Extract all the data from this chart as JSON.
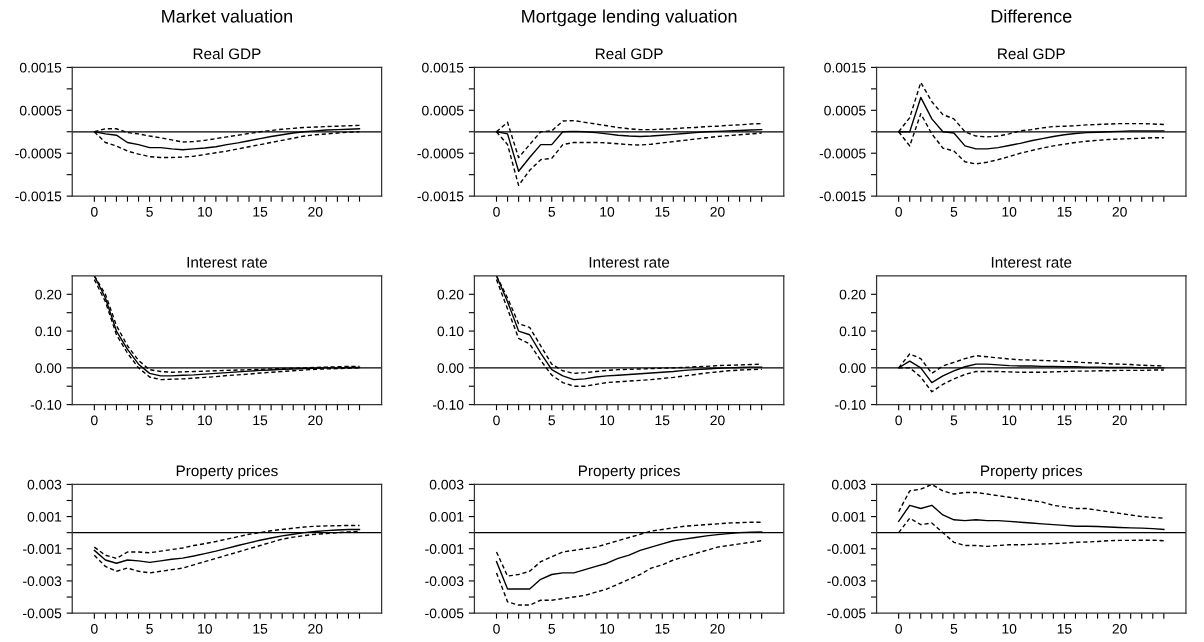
{
  "chart_data": [
    {
      "type": "line",
      "title": "Real GDP",
      "annotations": [
        "Market valuation"
      ],
      "x": [
        0,
        1,
        2,
        3,
        4,
        5,
        6,
        7,
        8,
        9,
        10,
        11,
        12,
        13,
        14,
        15,
        16,
        17,
        18,
        19,
        20,
        21,
        22,
        23,
        24
      ],
      "xlim": [
        -2,
        26
      ],
      "ylim": [
        -0.0015,
        0.0015
      ],
      "xticks": [
        0,
        {
          "value": 1,
          "label": null
        },
        {
          "value": 2,
          "label": null
        },
        {
          "value": 3,
          "label": null
        },
        {
          "value": 4,
          "label": null
        },
        5,
        {
          "value": 6,
          "label": null
        },
        {
          "value": 7,
          "label": null
        },
        {
          "value": 8,
          "label": null
        },
        {
          "value": 9,
          "label": null
        },
        10,
        {
          "value": 11,
          "label": null
        },
        {
          "value": 12,
          "label": null
        },
        {
          "value": 13,
          "label": null
        },
        {
          "value": 14,
          "label": null
        },
        15,
        {
          "value": 16,
          "label": null
        },
        {
          "value": 17,
          "label": null
        },
        {
          "value": 18,
          "label": null
        },
        {
          "value": 19,
          "label": null
        },
        20,
        {
          "value": 21,
          "label": null
        },
        {
          "value": 22,
          "label": null
        },
        {
          "value": 23,
          "label": null
        },
        {
          "value": 24,
          "label": null
        }
      ],
      "yticks": [
        -0.0015,
        {
          "value": -0.001,
          "label": null
        },
        -0.0005,
        {
          "value": 0,
          "label": null
        },
        0.0005,
        {
          "value": 0.001,
          "label": null
        },
        0.0015
      ],
      "ref_lines": [
        {
          "axis": "y",
          "value": 0,
          "color": "#000000"
        }
      ],
      "series": [
        {
          "color": "#000000",
          "line_style": "solid",
          "values": [
            0,
            -5e-05,
            -8e-05,
            -0.00025,
            -0.0003,
            -0.00037,
            -0.00037,
            -0.0004,
            -0.00042,
            -0.0004,
            -0.00038,
            -0.00035,
            -0.0003,
            -0.00026,
            -0.00021,
            -0.00016,
            -0.00011,
            -7e-05,
            -3e-05,
            0,
            2e-05,
            4e-05,
            5e-05,
            6e-05,
            7e-05
          ]
        },
        {
          "color": "#000000",
          "line_style": "dashed",
          "values": [
            0,
            7e-05,
            7e-05,
            -2e-05,
            -5e-05,
            -0.0001,
            -0.00014,
            -0.00019,
            -0.00024,
            -0.00023,
            -0.0002,
            -0.00016,
            -0.00012,
            -8e-05,
            -4e-05,
            0,
            3e-05,
            6e-05,
            8e-05,
            0.0001,
            0.00011,
            0.00012,
            0.00013,
            0.00014,
            0.00015
          ]
        },
        {
          "color": "#000000",
          "line_style": "dashed",
          "values": [
            0,
            -0.00025,
            -0.00033,
            -0.00045,
            -0.00052,
            -0.00058,
            -0.0006,
            -0.0006,
            -0.00059,
            -0.00057,
            -0.00053,
            -0.00049,
            -0.00045,
            -0.0004,
            -0.00035,
            -0.0003,
            -0.00025,
            -0.0002,
            -0.00015,
            -0.0001,
            -7e-05,
            -5e-05,
            -3e-05,
            -1e-05,
            0
          ]
        }
      ]
    },
    {
      "type": "line",
      "title": "Real GDP",
      "annotations": [
        "Mortgage lending valuation"
      ],
      "x": [
        0,
        1,
        2,
        3,
        4,
        5,
        6,
        7,
        8,
        9,
        10,
        11,
        12,
        13,
        14,
        15,
        16,
        17,
        18,
        19,
        20,
        21,
        22,
        23,
        24
      ],
      "xlim": [
        -2,
        26
      ],
      "ylim": [
        -0.0015,
        0.0015
      ],
      "xticks": [
        0,
        {
          "value": 1,
          "label": null
        },
        {
          "value": 2,
          "label": null
        },
        {
          "value": 3,
          "label": null
        },
        {
          "value": 4,
          "label": null
        },
        5,
        {
          "value": 6,
          "label": null
        },
        {
          "value": 7,
          "label": null
        },
        {
          "value": 8,
          "label": null
        },
        {
          "value": 9,
          "label": null
        },
        10,
        {
          "value": 11,
          "label": null
        },
        {
          "value": 12,
          "label": null
        },
        {
          "value": 13,
          "label": null
        },
        {
          "value": 14,
          "label": null
        },
        15,
        {
          "value": 16,
          "label": null
        },
        {
          "value": 17,
          "label": null
        },
        {
          "value": 18,
          "label": null
        },
        {
          "value": 19,
          "label": null
        },
        20,
        {
          "value": 21,
          "label": null
        },
        {
          "value": 22,
          "label": null
        },
        {
          "value": 23,
          "label": null
        },
        {
          "value": 24,
          "label": null
        }
      ],
      "yticks": [
        -0.0015,
        {
          "value": -0.001,
          "label": null
        },
        -0.0005,
        {
          "value": 0,
          "label": null
        },
        0.0005,
        {
          "value": 0.001,
          "label": null
        },
        0.0015
      ],
      "ref_lines": [
        {
          "axis": "y",
          "value": 0,
          "color": "#000000"
        }
      ],
      "series": [
        {
          "color": "#000000",
          "line_style": "solid",
          "values": [
            0,
            -5e-05,
            -0.00092,
            -0.0006,
            -0.0003,
            -0.0003,
            0,
            1e-05,
            0,
            -2e-05,
            -5e-05,
            -8e-05,
            -0.0001,
            -0.00011,
            -0.0001,
            -8e-05,
            -6e-05,
            -4e-05,
            -2e-05,
            0,
            1e-05,
            2e-05,
            3e-05,
            4e-05,
            5e-05
          ]
        },
        {
          "color": "#000000",
          "line_style": "dashed",
          "values": [
            0,
            0.00022,
            -0.0006,
            -0.0003,
            0,
            2e-05,
            0.00025,
            0.00026,
            0.00022,
            0.00018,
            0.00014,
            0.0001,
            7e-05,
            5e-05,
            5e-05,
            6e-05,
            7e-05,
            9e-05,
            0.0001,
            0.00012,
            0.00013,
            0.00015,
            0.00016,
            0.00018,
            0.00019
          ]
        },
        {
          "color": "#000000",
          "line_style": "dashed",
          "values": [
            0,
            -0.0003,
            -0.00125,
            -0.0009,
            -0.00065,
            -0.00062,
            -0.0003,
            -0.00025,
            -0.00025,
            -0.00025,
            -0.00026,
            -0.00028,
            -0.0003,
            -0.00031,
            -0.00029,
            -0.00026,
            -0.00023,
            -0.0002,
            -0.00017,
            -0.00014,
            -0.00011,
            -9e-05,
            -7e-05,
            -5e-05,
            -3e-05
          ]
        }
      ]
    },
    {
      "type": "line",
      "title": "Real GDP",
      "annotations": [
        "Difference"
      ],
      "x": [
        0,
        1,
        2,
        3,
        4,
        5,
        6,
        7,
        8,
        9,
        10,
        11,
        12,
        13,
        14,
        15,
        16,
        17,
        18,
        19,
        20,
        21,
        22,
        23,
        24
      ],
      "xlim": [
        -2,
        26
      ],
      "ylim": [
        -0.0015,
        0.0015
      ],
      "xticks": [
        0,
        {
          "value": 1,
          "label": null
        },
        {
          "value": 2,
          "label": null
        },
        {
          "value": 3,
          "label": null
        },
        {
          "value": 4,
          "label": null
        },
        5,
        {
          "value": 6,
          "label": null
        },
        {
          "value": 7,
          "label": null
        },
        {
          "value": 8,
          "label": null
        },
        {
          "value": 9,
          "label": null
        },
        10,
        {
          "value": 11,
          "label": null
        },
        {
          "value": 12,
          "label": null
        },
        {
          "value": 13,
          "label": null
        },
        {
          "value": 14,
          "label": null
        },
        15,
        {
          "value": 16,
          "label": null
        },
        {
          "value": 17,
          "label": null
        },
        {
          "value": 18,
          "label": null
        },
        {
          "value": 19,
          "label": null
        },
        20,
        {
          "value": 21,
          "label": null
        },
        {
          "value": 22,
          "label": null
        },
        {
          "value": 23,
          "label": null
        },
        {
          "value": 24,
          "label": null
        }
      ],
      "yticks": [
        -0.0015,
        {
          "value": -0.001,
          "label": null
        },
        -0.0005,
        {
          "value": 0,
          "label": null
        },
        0.0005,
        {
          "value": 0.001,
          "label": null
        },
        0.0015
      ],
      "ref_lines": [
        {
          "axis": "y",
          "value": 0,
          "color": "#000000"
        }
      ],
      "series": [
        {
          "color": "#000000",
          "line_style": "solid",
          "values": [
            0,
            0,
            0.0008,
            0.0003,
            0,
            -3e-05,
            -0.00033,
            -0.0004,
            -0.0004,
            -0.00037,
            -0.00032,
            -0.00027,
            -0.00021,
            -0.00016,
            -0.00011,
            -7e-05,
            -4e-05,
            -2e-05,
            -1e-05,
            0,
            1e-05,
            2e-05,
            2e-05,
            2e-05,
            2e-05
          ]
        },
        {
          "color": "#000000",
          "line_style": "dashed",
          "values": [
            0,
            0.00033,
            0.00115,
            0.0007,
            0.0004,
            0.0003,
            0,
            -0.0001,
            -0.00012,
            -0.0001,
            -5e-05,
            2e-05,
            5e-05,
            9e-05,
            0.00012,
            0.00013,
            0.00014,
            0.00016,
            0.00017,
            0.00018,
            0.00019,
            0.00019,
            0.00019,
            0.00018,
            0.00017
          ]
        },
        {
          "color": "#000000",
          "line_style": "dashed",
          "values": [
            0,
            -0.00033,
            0.00042,
            -5e-05,
            -0.00038,
            -0.00045,
            -0.0007,
            -0.00075,
            -0.00071,
            -0.00065,
            -0.00058,
            -0.0005,
            -0.00044,
            -0.00038,
            -0.00033,
            -0.00029,
            -0.00025,
            -0.00022,
            -0.0002,
            -0.00018,
            -0.00017,
            -0.00016,
            -0.00015,
            -0.00014,
            -0.00014
          ]
        }
      ]
    },
    {
      "type": "line",
      "title": "Interest rate",
      "x": [
        0,
        1,
        2,
        3,
        4,
        5,
        6,
        7,
        8,
        9,
        10,
        11,
        12,
        13,
        14,
        15,
        16,
        17,
        18,
        19,
        20,
        21,
        22,
        23,
        24
      ],
      "xlim": [
        -2,
        26
      ],
      "ylim": [
        -0.1,
        0.25
      ],
      "xticks": [
        0,
        {
          "value": 1,
          "label": null
        },
        {
          "value": 2,
          "label": null
        },
        {
          "value": 3,
          "label": null
        },
        {
          "value": 4,
          "label": null
        },
        5,
        {
          "value": 6,
          "label": null
        },
        {
          "value": 7,
          "label": null
        },
        {
          "value": 8,
          "label": null
        },
        {
          "value": 9,
          "label": null
        },
        10,
        {
          "value": 11,
          "label": null
        },
        {
          "value": 12,
          "label": null
        },
        {
          "value": 13,
          "label": null
        },
        {
          "value": 14,
          "label": null
        },
        15,
        {
          "value": 16,
          "label": null
        },
        {
          "value": 17,
          "label": null
        },
        {
          "value": 18,
          "label": null
        },
        {
          "value": 19,
          "label": null
        },
        20,
        {
          "value": 21,
          "label": null
        },
        {
          "value": 22,
          "label": null
        },
        {
          "value": 23,
          "label": null
        },
        {
          "value": 24,
          "label": null
        }
      ],
      "yticks": [
        {
          "value": -0.1,
          "label": "-0.10"
        },
        {
          "value": -0.05,
          "label": null
        },
        {
          "value": 0,
          "label": "0.00"
        },
        {
          "value": 0.05,
          "label": null
        },
        {
          "value": 0.1,
          "label": "0.10"
        },
        {
          "value": 0.15,
          "label": null
        },
        {
          "value": 0.2,
          "label": "0.20"
        }
      ],
      "ref_lines": [
        {
          "axis": "y",
          "value": 0,
          "color": "#000000"
        }
      ],
      "series": [
        {
          "color": "#000000",
          "line_style": "solid",
          "values": [
            0.25,
            0.19,
            0.1,
            0.05,
            0.01,
            -0.015,
            -0.022,
            -0.022,
            -0.02,
            -0.019,
            -0.017,
            -0.015,
            -0.013,
            -0.011,
            -0.009,
            -0.007,
            -0.006,
            -0.004,
            -0.003,
            -0.002,
            -0.001,
            0,
            0,
            0.001,
            0.001
          ]
        },
        {
          "color": "#000000",
          "line_style": "dashed",
          "values": [
            0.25,
            0.2,
            0.115,
            0.06,
            0.02,
            -0.005,
            -0.01,
            -0.012,
            -0.011,
            -0.01,
            -0.009,
            -0.008,
            -0.007,
            -0.006,
            -0.005,
            -0.004,
            -0.003,
            -0.002,
            -0.001,
            0,
            0.001,
            0.002,
            0.003,
            0.004,
            0.004
          ]
        },
        {
          "color": "#000000",
          "line_style": "dashed",
          "values": [
            0.24,
            0.18,
            0.09,
            0.04,
            0,
            -0.025,
            -0.032,
            -0.031,
            -0.03,
            -0.028,
            -0.026,
            -0.024,
            -0.021,
            -0.019,
            -0.017,
            -0.014,
            -0.012,
            -0.01,
            -0.008,
            -0.006,
            -0.004,
            -0.003,
            -0.002,
            -0.001,
            0
          ]
        }
      ]
    },
    {
      "type": "line",
      "title": "Interest rate",
      "x": [
        0,
        1,
        2,
        3,
        4,
        5,
        6,
        7,
        8,
        9,
        10,
        11,
        12,
        13,
        14,
        15,
        16,
        17,
        18,
        19,
        20,
        21,
        22,
        23,
        24
      ],
      "xlim": [
        -2,
        26
      ],
      "ylim": [
        -0.1,
        0.25
      ],
      "xticks": [
        0,
        {
          "value": 1,
          "label": null
        },
        {
          "value": 2,
          "label": null
        },
        {
          "value": 3,
          "label": null
        },
        {
          "value": 4,
          "label": null
        },
        5,
        {
          "value": 6,
          "label": null
        },
        {
          "value": 7,
          "label": null
        },
        {
          "value": 8,
          "label": null
        },
        {
          "value": 9,
          "label": null
        },
        10,
        {
          "value": 11,
          "label": null
        },
        {
          "value": 12,
          "label": null
        },
        {
          "value": 13,
          "label": null
        },
        {
          "value": 14,
          "label": null
        },
        15,
        {
          "value": 16,
          "label": null
        },
        {
          "value": 17,
          "label": null
        },
        {
          "value": 18,
          "label": null
        },
        {
          "value": 19,
          "label": null
        },
        20,
        {
          "value": 21,
          "label": null
        },
        {
          "value": 22,
          "label": null
        },
        {
          "value": 23,
          "label": null
        },
        {
          "value": 24,
          "label": null
        }
      ],
      "yticks": [
        {
          "value": -0.1,
          "label": "-0.10"
        },
        {
          "value": -0.05,
          "label": null
        },
        {
          "value": 0,
          "label": "0.00"
        },
        {
          "value": 0.05,
          "label": null
        },
        {
          "value": 0.1,
          "label": "0.10"
        },
        {
          "value": 0.15,
          "label": null
        },
        {
          "value": 0.2,
          "label": "0.20"
        }
      ],
      "ref_lines": [
        {
          "axis": "y",
          "value": 0,
          "color": "#000000"
        }
      ],
      "series": [
        {
          "color": "#000000",
          "line_style": "solid",
          "values": [
            0.25,
            0.18,
            0.1,
            0.09,
            0.04,
            -0.005,
            -0.022,
            -0.032,
            -0.03,
            -0.025,
            -0.022,
            -0.02,
            -0.018,
            -0.016,
            -0.014,
            -0.012,
            -0.01,
            -0.007,
            -0.005,
            -0.003,
            -0.001,
            0,
            0.001,
            0.002,
            0.002
          ]
        },
        {
          "color": "#000000",
          "line_style": "dashed",
          "values": [
            0.25,
            0.19,
            0.12,
            0.11,
            0.06,
            0.01,
            -0.008,
            -0.015,
            -0.013,
            -0.01,
            -0.007,
            -0.005,
            -0.004,
            -0.003,
            -0.002,
            -0.001,
            0,
            0.001,
            0.003,
            0.004,
            0.006,
            0.007,
            0.008,
            0.009,
            0.01
          ]
        },
        {
          "color": "#000000",
          "line_style": "dashed",
          "values": [
            0.24,
            0.16,
            0.08,
            0.065,
            0.02,
            -0.02,
            -0.04,
            -0.05,
            -0.05,
            -0.045,
            -0.04,
            -0.038,
            -0.036,
            -0.034,
            -0.032,
            -0.029,
            -0.026,
            -0.022,
            -0.018,
            -0.014,
            -0.011,
            -0.008,
            -0.006,
            -0.005,
            -0.004
          ]
        }
      ]
    },
    {
      "type": "line",
      "title": "Interest rate",
      "x": [
        0,
        1,
        2,
        3,
        4,
        5,
        6,
        7,
        8,
        9,
        10,
        11,
        12,
        13,
        14,
        15,
        16,
        17,
        18,
        19,
        20,
        21,
        22,
        23,
        24
      ],
      "xlim": [
        -2,
        26
      ],
      "ylim": [
        -0.1,
        0.25
      ],
      "xticks": [
        0,
        {
          "value": 1,
          "label": null
        },
        {
          "value": 2,
          "label": null
        },
        {
          "value": 3,
          "label": null
        },
        {
          "value": 4,
          "label": null
        },
        5,
        {
          "value": 6,
          "label": null
        },
        {
          "value": 7,
          "label": null
        },
        {
          "value": 8,
          "label": null
        },
        {
          "value": 9,
          "label": null
        },
        10,
        {
          "value": 11,
          "label": null
        },
        {
          "value": 12,
          "label": null
        },
        {
          "value": 13,
          "label": null
        },
        {
          "value": 14,
          "label": null
        },
        15,
        {
          "value": 16,
          "label": null
        },
        {
          "value": 17,
          "label": null
        },
        {
          "value": 18,
          "label": null
        },
        {
          "value": 19,
          "label": null
        },
        20,
        {
          "value": 21,
          "label": null
        },
        {
          "value": 22,
          "label": null
        },
        {
          "value": 23,
          "label": null
        },
        {
          "value": 24,
          "label": null
        }
      ],
      "yticks": [
        {
          "value": -0.1,
          "label": "-0.10"
        },
        {
          "value": -0.05,
          "label": null
        },
        {
          "value": 0,
          "label": "0.00"
        },
        {
          "value": 0.05,
          "label": null
        },
        {
          "value": 0.1,
          "label": "0.10"
        },
        {
          "value": 0.15,
          "label": null
        },
        {
          "value": 0.2,
          "label": "0.20"
        }
      ],
      "ref_lines": [
        {
          "axis": "y",
          "value": 0,
          "color": "#000000"
        }
      ],
      "series": [
        {
          "color": "#000000",
          "line_style": "solid",
          "values": [
            0,
            0.018,
            0,
            -0.04,
            -0.022,
            -0.008,
            0.003,
            0.01,
            0.01,
            0.008,
            0.006,
            0.005,
            0.005,
            0.004,
            0.004,
            0.003,
            0.003,
            0.002,
            0.002,
            0.001,
            0.001,
            0.001,
            0,
            0,
            0
          ]
        },
        {
          "color": "#000000",
          "line_style": "dashed",
          "values": [
            0,
            0.038,
            0.025,
            -0.015,
            0.005,
            0.015,
            0.025,
            0.033,
            0.03,
            0.027,
            0.024,
            0.022,
            0.021,
            0.02,
            0.019,
            0.018,
            0.016,
            0.014,
            0.013,
            0.011,
            0.01,
            0.009,
            0.007,
            0.006,
            0.005
          ]
        },
        {
          "color": "#000000",
          "line_style": "dashed",
          "values": [
            0,
            0,
            -0.025,
            -0.065,
            -0.045,
            -0.03,
            -0.018,
            -0.01,
            -0.01,
            -0.01,
            -0.011,
            -0.012,
            -0.012,
            -0.012,
            -0.011,
            -0.01,
            -0.009,
            -0.009,
            -0.008,
            -0.008,
            -0.007,
            -0.007,
            -0.007,
            -0.006,
            -0.006
          ]
        }
      ]
    },
    {
      "type": "line",
      "title": "Property prices",
      "x": [
        0,
        1,
        2,
        3,
        4,
        5,
        6,
        7,
        8,
        9,
        10,
        11,
        12,
        13,
        14,
        15,
        16,
        17,
        18,
        19,
        20,
        21,
        22,
        23,
        24
      ],
      "xlim": [
        -2,
        26
      ],
      "ylim": [
        -0.005,
        0.003
      ],
      "xticks": [
        0,
        {
          "value": 1,
          "label": null
        },
        {
          "value": 2,
          "label": null
        },
        {
          "value": 3,
          "label": null
        },
        {
          "value": 4,
          "label": null
        },
        5,
        {
          "value": 6,
          "label": null
        },
        {
          "value": 7,
          "label": null
        },
        {
          "value": 8,
          "label": null
        },
        {
          "value": 9,
          "label": null
        },
        10,
        {
          "value": 11,
          "label": null
        },
        {
          "value": 12,
          "label": null
        },
        {
          "value": 13,
          "label": null
        },
        {
          "value": 14,
          "label": null
        },
        15,
        {
          "value": 16,
          "label": null
        },
        {
          "value": 17,
          "label": null
        },
        {
          "value": 18,
          "label": null
        },
        {
          "value": 19,
          "label": null
        },
        20,
        {
          "value": 21,
          "label": null
        },
        {
          "value": 22,
          "label": null
        },
        {
          "value": 23,
          "label": null
        },
        {
          "value": 24,
          "label": null
        }
      ],
      "yticks": [
        -0.005,
        {
          "value": -0.004,
          "label": null
        },
        -0.003,
        {
          "value": -0.002,
          "label": null
        },
        -0.001,
        {
          "value": 0,
          "label": null
        },
        0.001,
        {
          "value": 0.002,
          "label": null
        },
        0.003
      ],
      "ref_lines": [
        {
          "axis": "y",
          "value": 0,
          "color": "#000000"
        }
      ],
      "series": [
        {
          "color": "#000000",
          "line_style": "solid",
          "values": [
            -0.0011,
            -0.0017,
            -0.0019,
            -0.0017,
            -0.00175,
            -0.00185,
            -0.00175,
            -0.00165,
            -0.00158,
            -0.00145,
            -0.0013,
            -0.00115,
            -0.00098,
            -0.0008,
            -0.00063,
            -0.00047,
            -0.00033,
            -0.0002,
            -0.0001,
            0,
            7e-05,
            0.00013,
            0.00017,
            0.0002,
            0.0002
          ]
        },
        {
          "color": "#000000",
          "line_style": "dashed",
          "values": [
            -0.0009,
            -0.0014,
            -0.0016,
            -0.0012,
            -0.0012,
            -0.00125,
            -0.00115,
            -0.00105,
            -0.00095,
            -0.0008,
            -0.00068,
            -0.00055,
            -0.0004,
            -0.00025,
            -0.0001,
            0,
            0.00012,
            0.0002,
            0.00028,
            0.00035,
            0.0004,
            0.00042,
            0.00043,
            0.00045,
            0.00045
          ]
        },
        {
          "color": "#000000",
          "line_style": "dashed",
          "values": [
            -0.0014,
            -0.0021,
            -0.0024,
            -0.0022,
            -0.0024,
            -0.0025,
            -0.0024,
            -0.0023,
            -0.0022,
            -0.002,
            -0.0018,
            -0.0016,
            -0.0014,
            -0.0012,
            -0.001,
            -0.0008,
            -0.0006,
            -0.0004,
            -0.00028,
            -0.00018,
            -0.0001,
            -5e-05,
            0,
            5e-05,
            8e-05
          ]
        }
      ]
    },
    {
      "type": "line",
      "title": "Property prices",
      "x": [
        0,
        1,
        2,
        3,
        4,
        5,
        6,
        7,
        8,
        9,
        10,
        11,
        12,
        13,
        14,
        15,
        16,
        17,
        18,
        19,
        20,
        21,
        22,
        23,
        24
      ],
      "xlim": [
        -2,
        26
      ],
      "ylim": [
        -0.005,
        0.003
      ],
      "xticks": [
        0,
        {
          "value": 1,
          "label": null
        },
        {
          "value": 2,
          "label": null
        },
        {
          "value": 3,
          "label": null
        },
        {
          "value": 4,
          "label": null
        },
        5,
        {
          "value": 6,
          "label": null
        },
        {
          "value": 7,
          "label": null
        },
        {
          "value": 8,
          "label": null
        },
        {
          "value": 9,
          "label": null
        },
        10,
        {
          "value": 11,
          "label": null
        },
        {
          "value": 12,
          "label": null
        },
        {
          "value": 13,
          "label": null
        },
        {
          "value": 14,
          "label": null
        },
        15,
        {
          "value": 16,
          "label": null
        },
        {
          "value": 17,
          "label": null
        },
        {
          "value": 18,
          "label": null
        },
        {
          "value": 19,
          "label": null
        },
        20,
        {
          "value": 21,
          "label": null
        },
        {
          "value": 22,
          "label": null
        },
        {
          "value": 23,
          "label": null
        },
        {
          "value": 24,
          "label": null
        }
      ],
      "yticks": [
        -0.005,
        {
          "value": -0.004,
          "label": null
        },
        -0.003,
        {
          "value": -0.002,
          "label": null
        },
        -0.001,
        {
          "value": 0,
          "label": null
        },
        0.001,
        {
          "value": 0.002,
          "label": null
        },
        0.003
      ],
      "ref_lines": [
        {
          "axis": "y",
          "value": 0,
          "color": "#000000"
        }
      ],
      "series": [
        {
          "color": "#000000",
          "line_style": "solid",
          "values": [
            -0.0018,
            -0.0035,
            -0.0035,
            -0.0035,
            -0.0029,
            -0.0026,
            -0.0025,
            -0.0025,
            -0.0023,
            -0.0021,
            -0.0019,
            -0.0016,
            -0.0014,
            -0.0011,
            -0.0009,
            -0.0007,
            -0.0005,
            -0.0004,
            -0.0003,
            -0.0002,
            -0.00012,
            -6e-05,
            0,
            3e-05,
            5e-05
          ]
        },
        {
          "color": "#000000",
          "line_style": "dashed",
          "values": [
            -0.0012,
            -0.0027,
            -0.0026,
            -0.0024,
            -0.0018,
            -0.0015,
            -0.0012,
            -0.0011,
            -0.001,
            -0.0009,
            -0.0007,
            -0.0005,
            -0.0003,
            -0.0001,
            0.0001,
            0.0002,
            0.0003,
            0.0004,
            0.00045,
            0.0005,
            0.00055,
            0.0006,
            0.00062,
            0.00065,
            0.00065
          ]
        },
        {
          "color": "#000000",
          "line_style": "dashed",
          "values": [
            -0.0025,
            -0.0043,
            -0.0045,
            -0.0045,
            -0.0042,
            -0.0042,
            -0.0041,
            -0.004,
            -0.0039,
            -0.0037,
            -0.0035,
            -0.0032,
            -0.0029,
            -0.0026,
            -0.0022,
            -0.002,
            -0.0017,
            -0.0015,
            -0.0013,
            -0.0011,
            -0.0009,
            -0.0008,
            -0.0007,
            -0.0006,
            -0.0005
          ]
        }
      ]
    },
    {
      "type": "line",
      "title": "Property prices",
      "x": [
        0,
        1,
        2,
        3,
        4,
        5,
        6,
        7,
        8,
        9,
        10,
        11,
        12,
        13,
        14,
        15,
        16,
        17,
        18,
        19,
        20,
        21,
        22,
        23,
        24
      ],
      "xlim": [
        -2,
        26
      ],
      "ylim": [
        -0.005,
        0.003
      ],
      "xticks": [
        0,
        {
          "value": 1,
          "label": null
        },
        {
          "value": 2,
          "label": null
        },
        {
          "value": 3,
          "label": null
        },
        {
          "value": 4,
          "label": null
        },
        5,
        {
          "value": 6,
          "label": null
        },
        {
          "value": 7,
          "label": null
        },
        {
          "value": 8,
          "label": null
        },
        {
          "value": 9,
          "label": null
        },
        10,
        {
          "value": 11,
          "label": null
        },
        {
          "value": 12,
          "label": null
        },
        {
          "value": 13,
          "label": null
        },
        {
          "value": 14,
          "label": null
        },
        15,
        {
          "value": 16,
          "label": null
        },
        {
          "value": 17,
          "label": null
        },
        {
          "value": 18,
          "label": null
        },
        {
          "value": 19,
          "label": null
        },
        20,
        {
          "value": 21,
          "label": null
        },
        {
          "value": 22,
          "label": null
        },
        {
          "value": 23,
          "label": null
        },
        {
          "value": 24,
          "label": null
        }
      ],
      "yticks": [
        -0.005,
        {
          "value": -0.004,
          "label": null
        },
        -0.003,
        {
          "value": -0.002,
          "label": null
        },
        -0.001,
        {
          "value": 0,
          "label": null
        },
        0.001,
        {
          "value": 0.002,
          "label": null
        },
        0.003
      ],
      "ref_lines": [
        {
          "axis": "y",
          "value": 0,
          "color": "#000000"
        }
      ],
      "series": [
        {
          "color": "#000000",
          "line_style": "solid",
          "values": [
            0.0007,
            0.0017,
            0.0015,
            0.0017,
            0.0011,
            0.0008,
            0.00075,
            0.0008,
            0.00075,
            0.00075,
            0.0007,
            0.00065,
            0.0006,
            0.00055,
            0.0005,
            0.00045,
            0.0004,
            0.0004,
            0.00038,
            0.00035,
            0.00032,
            0.0003,
            0.00028,
            0.00025,
            0.0002
          ]
        },
        {
          "color": "#000000",
          "line_style": "dashed",
          "values": [
            0.0013,
            0.0026,
            0.0027,
            0.003,
            0.0026,
            0.0024,
            0.0025,
            0.0025,
            0.0024,
            0.0023,
            0.0022,
            0.0021,
            0.002,
            0.0019,
            0.0017,
            0.0016,
            0.0015,
            0.0015,
            0.0014,
            0.0013,
            0.0012,
            0.0011,
            0.001,
            0.00095,
            0.0009
          ]
        },
        {
          "color": "#000000",
          "line_style": "dashed",
          "values": [
            0,
            0.0009,
            0.0005,
            0.0006,
            0,
            -0.0006,
            -0.0008,
            -0.0008,
            -0.00085,
            -0.0008,
            -0.00075,
            -0.00075,
            -0.00073,
            -0.0007,
            -0.00068,
            -0.00065,
            -0.0006,
            -0.00058,
            -0.00055,
            -0.0005,
            -0.00048,
            -0.00048,
            -0.00047,
            -0.00047,
            -0.0005
          ]
        }
      ]
    }
  ]
}
